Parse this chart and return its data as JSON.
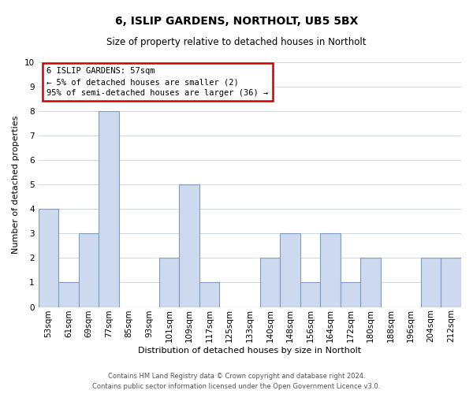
{
  "title": "6, ISLIP GARDENS, NORTHOLT, UB5 5BX",
  "subtitle": "Size of property relative to detached houses in Northolt",
  "xlabel": "Distribution of detached houses by size in Northolt",
  "ylabel": "Number of detached properties",
  "categories": [
    "53sqm",
    "61sqm",
    "69sqm",
    "77sqm",
    "85sqm",
    "93sqm",
    "101sqm",
    "109sqm",
    "117sqm",
    "125sqm",
    "133sqm",
    "140sqm",
    "148sqm",
    "156sqm",
    "164sqm",
    "172sqm",
    "180sqm",
    "188sqm",
    "196sqm",
    "204sqm",
    "212sqm"
  ],
  "values": [
    4,
    1,
    3,
    8,
    0,
    0,
    2,
    5,
    1,
    0,
    0,
    2,
    3,
    1,
    3,
    1,
    2,
    0,
    0,
    2,
    2
  ],
  "bar_color": "#cdd9ee",
  "bar_edge_color": "#7a9cc7",
  "ylim": [
    0,
    10
  ],
  "yticks": [
    0,
    1,
    2,
    3,
    4,
    5,
    6,
    7,
    8,
    9,
    10
  ],
  "grid_color": "#d0d8e8",
  "background_color": "#ffffff",
  "annotation_box_color": "#ffffff",
  "annotation_box_edge": "#cc0000",
  "annotation_lines": [
    "6 ISLIP GARDENS: 57sqm",
    "← 5% of detached houses are smaller (2)",
    "95% of semi-detached houses are larger (36) →"
  ],
  "footer_lines": [
    "Contains HM Land Registry data © Crown copyright and database right 2024.",
    "Contains public sector information licensed under the Open Government Licence v3.0."
  ],
  "title_fontsize": 10,
  "subtitle_fontsize": 8.5,
  "xlabel_fontsize": 8,
  "ylabel_fontsize": 8,
  "tick_fontsize": 7.5,
  "footer_fontsize": 6
}
